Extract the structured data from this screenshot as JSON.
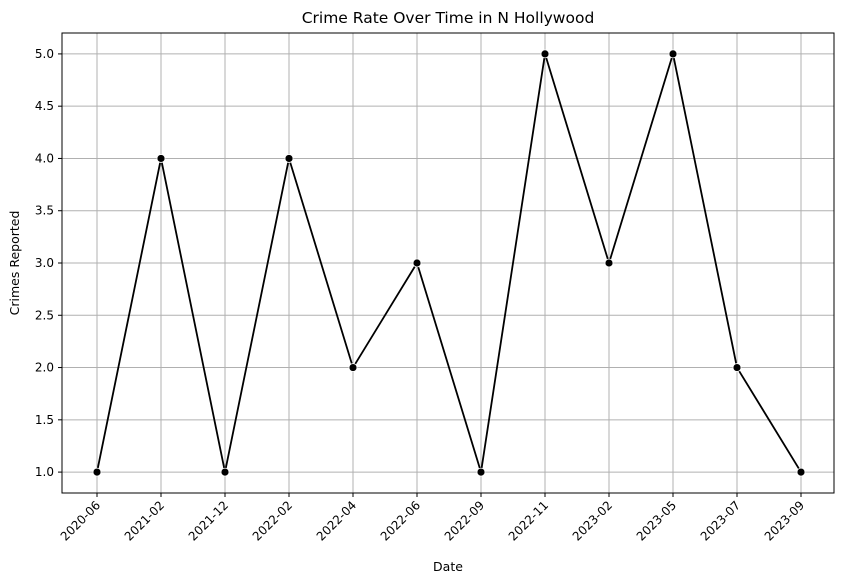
{
  "chart_data": {
    "type": "line",
    "title": "Crime Rate Over Time in N Hollywood",
    "xlabel": "Date",
    "ylabel": "Crimes Reported",
    "categories": [
      "2020-06",
      "2021-02",
      "2021-12",
      "2022-02",
      "2022-04",
      "2022-06",
      "2022-09",
      "2022-11",
      "2023-02",
      "2023-05",
      "2023-07",
      "2023-09"
    ],
    "series": [
      {
        "values": [
          1,
          4,
          1,
          4,
          2,
          3,
          1,
          5,
          3,
          5,
          2,
          1
        ],
        "color": "#000000",
        "marker": "circle"
      }
    ],
    "yticks": [
      "1.0",
      "1.5",
      "2.0",
      "2.5",
      "3.0",
      "3.5",
      "4.0",
      "4.5",
      "5.0"
    ],
    "ylim": [
      0.8,
      5.2
    ],
    "grid": true,
    "colors": {
      "line": "#000000",
      "grid": "#b0b0b0",
      "background": "#ffffff"
    }
  }
}
